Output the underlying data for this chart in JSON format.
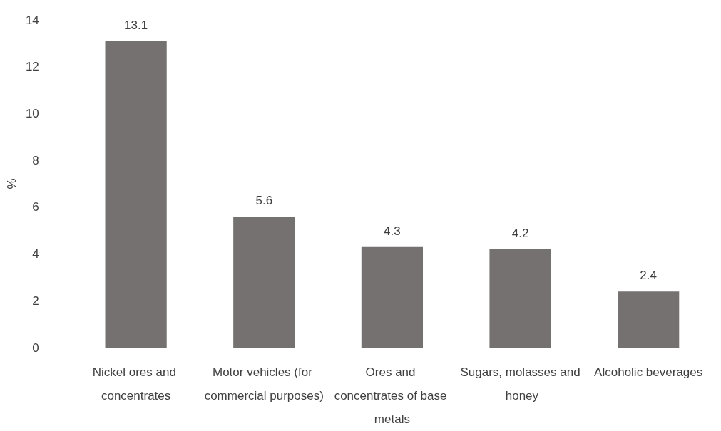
{
  "chart_data": {
    "type": "bar",
    "ylabel": "%",
    "categories": [
      "Nickel ores and concentrates",
      "Motor vehicles (for commercial purposes)",
      "Ores and concentrates of base metals",
      "Sugars, molasses and honey",
      "Alcoholic beverages"
    ],
    "values": [
      13.1,
      5.6,
      4.3,
      4.2,
      2.4
    ],
    "color": "#767171",
    "ylim": [
      0,
      14
    ],
    "yticks": [
      0,
      2,
      4,
      6,
      8,
      10,
      12,
      14
    ],
    "grid": false,
    "data_labels": true
  }
}
